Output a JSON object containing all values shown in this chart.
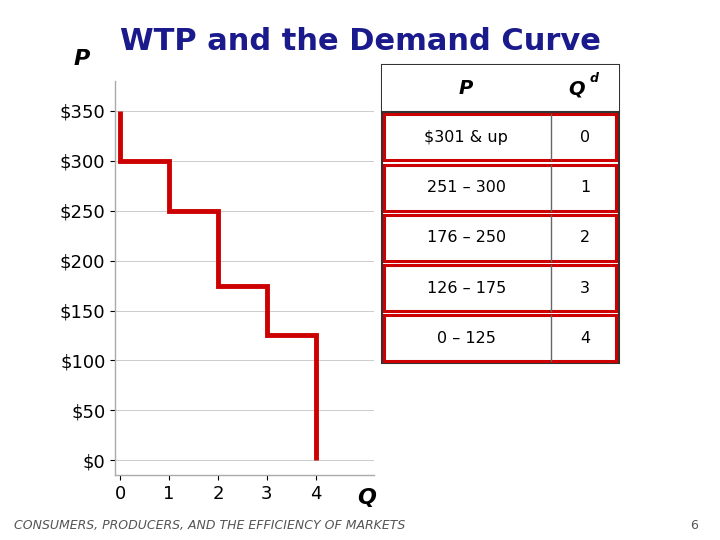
{
  "title": "WTP and the Demand Curve",
  "title_color": "#1a1a8c",
  "title_fontsize": 22,
  "title_fontweight": "bold",
  "xlabel": "Q",
  "ylabel": "P",
  "ylabel_style": "italic",
  "ylabel_fontsize": 16,
  "xlabel_style": "italic",
  "xlabel_fontsize": 16,
  "bg_color": "#ffffff",
  "step_x": [
    0,
    0,
    1,
    1,
    2,
    2,
    3,
    3,
    4,
    4
  ],
  "step_y": [
    350,
    300,
    300,
    250,
    250,
    175,
    175,
    125,
    125,
    0
  ],
  "line_color": "#cc0000",
  "line_width": 3.5,
  "yticks": [
    0,
    50,
    100,
    150,
    200,
    250,
    300,
    350
  ],
  "ytick_labels": [
    "$0",
    "$50",
    "$100",
    "$150",
    "$200",
    "$250",
    "$300",
    "$350"
  ],
  "xticks": [
    0,
    1,
    2,
    3,
    4
  ],
  "xtick_labels": [
    "0",
    "1",
    "2",
    "3",
    "4"
  ],
  "xlim": [
    -0.1,
    5.2
  ],
  "ylim": [
    -15,
    380
  ],
  "table_rows": [
    [
      "$301 & up",
      "0"
    ],
    [
      "251 – 300",
      "1"
    ],
    [
      "176 – 250",
      "2"
    ],
    [
      "126 – 175",
      "3"
    ],
    [
      "0 – 125",
      "4"
    ]
  ],
  "table_header": [
    "P",
    "Qd"
  ],
  "table_box_color": "#cc0000",
  "table_outer_color": "#333333",
  "footer_text": "CONSUMERS, PRODUCERS, AND THE EFFICIENCY OF MARKETS",
  "footer_num": "6",
  "footer_fontsize": 9,
  "footer_color": "#555555"
}
